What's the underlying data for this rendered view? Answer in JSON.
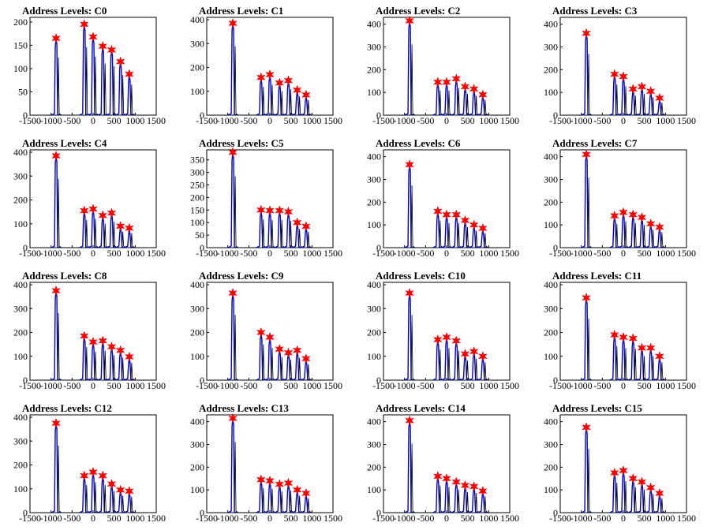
{
  "chart_data": [
    {
      "type": "line",
      "title": "Address Levels: C0",
      "xlim": [
        -1500,
        1500
      ],
      "ylim": [
        0,
        210
      ],
      "xticks": [
        -1500,
        -1000,
        -500,
        0,
        500,
        1000,
        1500
      ],
      "yticks": [
        0,
        50,
        100,
        150,
        200
      ],
      "peaks_x": [
        -880,
        -210,
        0,
        230,
        440,
        650,
        860
      ],
      "peaks_y": [
        165,
        195,
        168,
        148,
        140,
        115,
        88
      ]
    },
    {
      "type": "line",
      "title": "Address Levels: C1",
      "xlim": [
        -1500,
        1500
      ],
      "ylim": [
        0,
        410
      ],
      "xticks": [
        -1500,
        -1000,
        -500,
        0,
        500,
        1000,
        1500
      ],
      "yticks": [
        0,
        100,
        200,
        300,
        400
      ],
      "peaks_x": [
        -880,
        -210,
        0,
        230,
        440,
        650,
        860
      ],
      "peaks_y": [
        385,
        158,
        170,
        135,
        145,
        105,
        85
      ]
    },
    {
      "type": "line",
      "title": "Address Levels: C2",
      "xlim": [
        -1500,
        1500
      ],
      "ylim": [
        0,
        430
      ],
      "xticks": [
        -1500,
        -1000,
        -500,
        0,
        500,
        1000,
        1500
      ],
      "yticks": [
        0,
        100,
        200,
        300,
        400
      ],
      "peaks_x": [
        -880,
        -210,
        0,
        230,
        440,
        650,
        860
      ],
      "peaks_y": [
        415,
        145,
        145,
        160,
        125,
        115,
        90
      ]
    },
    {
      "type": "line",
      "title": "Address Levels: C3",
      "xlim": [
        -1500,
        1500
      ],
      "ylim": [
        0,
        430
      ],
      "xticks": [
        -1500,
        -1000,
        -500,
        0,
        500,
        1000,
        1500
      ],
      "yticks": [
        0,
        100,
        200,
        300,
        400
      ],
      "peaks_x": [
        -880,
        -210,
        0,
        230,
        440,
        650,
        860
      ],
      "peaks_y": [
        360,
        180,
        170,
        115,
        125,
        105,
        75
      ]
    },
    {
      "type": "line",
      "title": "Address Levels: C4",
      "xlim": [
        -1500,
        1500
      ],
      "ylim": [
        0,
        410
      ],
      "xticks": [
        -1500,
        -1000,
        -500,
        0,
        500,
        1000,
        1500
      ],
      "yticks": [
        0,
        100,
        200,
        300,
        400
      ],
      "peaks_x": [
        -880,
        -210,
        0,
        230,
        440,
        650,
        860
      ],
      "peaks_y": [
        385,
        155,
        162,
        135,
        145,
        90,
        82
      ]
    },
    {
      "type": "line",
      "title": "Address Levels: C5",
      "xlim": [
        -1500,
        1500
      ],
      "ylim": [
        0,
        390
      ],
      "xticks": [
        -1500,
        -1000,
        -500,
        0,
        500,
        1000,
        1500
      ],
      "yticks": [
        0,
        50,
        100,
        150,
        200,
        250,
        300,
        350
      ],
      "peaks_x": [
        -880,
        -210,
        0,
        230,
        440,
        650,
        860
      ],
      "peaks_y": [
        380,
        150,
        148,
        148,
        143,
        100,
        85
      ]
    },
    {
      "type": "line",
      "title": "Address Levels: C6",
      "xlim": [
        -1500,
        1500
      ],
      "ylim": [
        0,
        430
      ],
      "xticks": [
        -1500,
        -1000,
        -500,
        0,
        500,
        1000,
        1500
      ],
      "yticks": [
        0,
        100,
        200,
        300,
        400
      ],
      "peaks_x": [
        -880,
        -210,
        0,
        230,
        440,
        650,
        860
      ],
      "peaks_y": [
        365,
        160,
        145,
        145,
        120,
        100,
        85
      ]
    },
    {
      "type": "line",
      "title": "Address Levels: C7",
      "xlim": [
        -1500,
        1500
      ],
      "ylim": [
        0,
        430
      ],
      "xticks": [
        -1500,
        -1000,
        -500,
        0,
        500,
        1000,
        1500
      ],
      "yticks": [
        0,
        100,
        200,
        300,
        400
      ],
      "peaks_x": [
        -880,
        -210,
        0,
        230,
        440,
        650,
        860
      ],
      "peaks_y": [
        410,
        140,
        155,
        145,
        133,
        105,
        90
      ]
    },
    {
      "type": "line",
      "title": "Address Levels: C8",
      "xlim": [
        -1500,
        1500
      ],
      "ylim": [
        0,
        410
      ],
      "xticks": [
        -1500,
        -1000,
        -500,
        0,
        500,
        1000,
        1500
      ],
      "yticks": [
        0,
        100,
        200,
        300,
        400
      ],
      "peaks_x": [
        -880,
        -210,
        0,
        230,
        440,
        650,
        860
      ],
      "peaks_y": [
        375,
        185,
        160,
        165,
        140,
        125,
        98
      ]
    },
    {
      "type": "line",
      "title": "Address Levels: C9",
      "xlim": [
        -1500,
        1500
      ],
      "ylim": [
        0,
        410
      ],
      "xticks": [
        -1500,
        -1000,
        -500,
        0,
        500,
        1000,
        1500
      ],
      "yticks": [
        0,
        100,
        200,
        300,
        400
      ],
      "peaks_x": [
        -880,
        -210,
        0,
        230,
        440,
        650,
        860
      ],
      "peaks_y": [
        365,
        200,
        180,
        130,
        115,
        125,
        90
      ]
    },
    {
      "type": "line",
      "title": "Address Levels: C10",
      "xlim": [
        -1500,
        1500
      ],
      "ylim": [
        0,
        410
      ],
      "xticks": [
        -1500,
        -1000,
        -500,
        0,
        500,
        1000,
        1500
      ],
      "yticks": [
        0,
        100,
        200,
        300,
        400
      ],
      "peaks_x": [
        -880,
        -210,
        0,
        230,
        440,
        650,
        860
      ],
      "peaks_y": [
        365,
        170,
        180,
        165,
        110,
        120,
        100
      ]
    },
    {
      "type": "line",
      "title": "Address Levels: C11",
      "xlim": [
        -1500,
        1500
      ],
      "ylim": [
        0,
        410
      ],
      "xticks": [
        -1500,
        -1000,
        -500,
        0,
        500,
        1000,
        1500
      ],
      "yticks": [
        0,
        100,
        200,
        300,
        400
      ],
      "peaks_x": [
        -880,
        -210,
        0,
        230,
        440,
        650,
        860
      ],
      "peaks_y": [
        345,
        190,
        180,
        175,
        135,
        135,
        100
      ]
    },
    {
      "type": "line",
      "title": "Address Levels: C12",
      "xlim": [
        -1500,
        1500
      ],
      "ylim": [
        0,
        410
      ],
      "xticks": [
        -1500,
        -1000,
        -500,
        0,
        500,
        1000,
        1500
      ],
      "yticks": [
        0,
        100,
        200,
        300,
        400
      ],
      "peaks_x": [
        -880,
        -210,
        0,
        230,
        440,
        650,
        860
      ],
      "peaks_y": [
        375,
        155,
        170,
        155,
        120,
        95,
        90
      ]
    },
    {
      "type": "line",
      "title": "Address Levels: C13",
      "xlim": [
        -1500,
        1500
      ],
      "ylim": [
        0,
        430
      ],
      "xticks": [
        -1500,
        -1000,
        -500,
        0,
        500,
        1000,
        1500
      ],
      "yticks": [
        0,
        100,
        200,
        300,
        400
      ],
      "peaks_x": [
        -880,
        -210,
        0,
        230,
        440,
        650,
        860
      ],
      "peaks_y": [
        415,
        145,
        140,
        125,
        130,
        100,
        85
      ]
    },
    {
      "type": "line",
      "title": "Address Levels: C14",
      "xlim": [
        -1500,
        1500
      ],
      "ylim": [
        0,
        430
      ],
      "xticks": [
        -1500,
        -1000,
        -500,
        0,
        500,
        1000,
        1500
      ],
      "yticks": [
        0,
        100,
        200,
        300,
        400
      ],
      "peaks_x": [
        -880,
        -210,
        0,
        230,
        440,
        650,
        860
      ],
      "peaks_y": [
        405,
        160,
        150,
        135,
        120,
        115,
        95
      ]
    },
    {
      "type": "line",
      "title": "Address Levels: C15",
      "xlim": [
        -1500,
        1500
      ],
      "ylim": [
        0,
        430
      ],
      "xticks": [
        -1500,
        -1000,
        -500,
        0,
        500,
        1000,
        1500
      ],
      "yticks": [
        0,
        100,
        200,
        300,
        400
      ],
      "peaks_x": [
        -880,
        -210,
        0,
        230,
        440,
        650,
        860
      ],
      "peaks_y": [
        375,
        175,
        185,
        150,
        135,
        110,
        85
      ]
    }
  ],
  "colors": {
    "line": "#0000cc",
    "secondary": "#000000",
    "marker": "#ff0000",
    "axis": "#000000"
  }
}
